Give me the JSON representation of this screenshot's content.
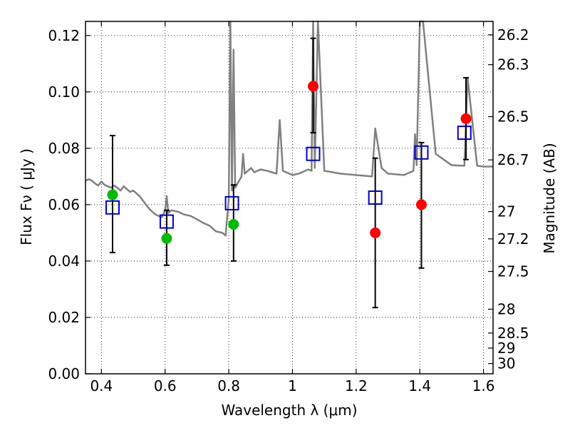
{
  "chart_data": {
    "type": "scatter",
    "xlabel": "Wavelength  λ (μm)",
    "ylabel": "Flux  Fν  ( μJy )",
    "y2label": "Magnitude (AB)",
    "xlim": [
      0.35,
      1.63
    ],
    "ylim": [
      0.0,
      0.125
    ],
    "grid": true,
    "x_ticks": [
      0.4,
      0.6,
      0.8,
      1.0,
      1.2,
      1.4,
      1.6
    ],
    "x_tick_labels": [
      "0.4",
      "0.6",
      "0.8",
      "1",
      "1.2",
      "1.4",
      "1.6"
    ],
    "y_ticks": [
      0.0,
      0.02,
      0.04,
      0.06,
      0.08,
      0.1,
      0.12
    ],
    "y_tick_labels": [
      "0.00",
      "0.02",
      "0.04",
      "0.06",
      "0.08",
      "0.10",
      "0.12"
    ],
    "mag_ticks": [
      26.2,
      26.3,
      26.5,
      26.7,
      27,
      27.2,
      27.5,
      28,
      28.5,
      29,
      30
    ],
    "mag_tick_labels": [
      "26.2",
      "26.3",
      "26.5",
      "26.7",
      "27",
      "27.2",
      "27.5",
      "28",
      "28.5",
      "29",
      "30"
    ],
    "colors": {
      "model": "#808080",
      "observed_blue_optical": "#00bb00",
      "observed_nir": "#ff0000",
      "model_points": "#0000cc",
      "errorbars": "#000000",
      "grid": "#000000"
    },
    "model_spectrum": {
      "x": [
        0.35,
        0.36,
        0.37,
        0.38,
        0.39,
        0.4,
        0.41,
        0.42,
        0.43,
        0.44,
        0.45,
        0.46,
        0.47,
        0.48,
        0.49,
        0.5,
        0.51,
        0.52,
        0.53,
        0.54,
        0.55,
        0.56,
        0.57,
        0.58,
        0.59,
        0.6,
        0.605,
        0.61,
        0.62,
        0.64,
        0.66,
        0.68,
        0.7,
        0.72,
        0.74,
        0.76,
        0.78,
        0.79,
        0.8,
        0.805,
        0.81,
        0.815,
        0.82,
        0.83,
        0.84,
        0.845,
        0.85,
        0.86,
        0.87,
        0.88,
        0.9,
        0.92,
        0.95,
        0.96,
        0.97,
        1.0,
        1.02,
        1.05,
        1.06,
        1.065,
        1.07,
        1.08,
        1.1,
        1.15,
        1.2,
        1.25,
        1.26,
        1.28,
        1.3,
        1.35,
        1.38,
        1.385,
        1.39,
        1.4,
        1.41,
        1.45,
        1.5,
        1.54,
        1.55,
        1.58,
        1.6,
        1.63
      ],
      "y": [
        0.0685,
        0.069,
        0.0685,
        0.0675,
        0.0668,
        0.0682,
        0.067,
        0.0665,
        0.066,
        0.0668,
        0.066,
        0.065,
        0.0665,
        0.0655,
        0.0645,
        0.065,
        0.064,
        0.063,
        0.0615,
        0.06,
        0.0585,
        0.0575,
        0.0565,
        0.056,
        0.0555,
        0.058,
        0.063,
        0.057,
        0.058,
        0.0575,
        0.0565,
        0.056,
        0.0548,
        0.0535,
        0.0525,
        0.0505,
        0.05,
        0.049,
        0.062,
        0.125,
        0.065,
        0.115,
        0.066,
        0.068,
        0.07,
        0.078,
        0.071,
        0.072,
        0.073,
        0.0715,
        0.0725,
        0.072,
        0.071,
        0.09,
        0.072,
        0.0705,
        0.071,
        0.0725,
        0.072,
        0.125,
        0.073,
        0.125,
        0.072,
        0.071,
        0.0705,
        0.07,
        0.087,
        0.073,
        0.071,
        0.0705,
        0.072,
        0.085,
        0.074,
        0.125,
        0.125,
        0.078,
        0.074,
        0.0738,
        0.105,
        0.0738,
        0.0735,
        0.0735
      ]
    },
    "series": [
      {
        "name": "observed (green)",
        "marker": "circle",
        "x": [
          0.435,
          0.605,
          0.815
        ],
        "y": [
          0.0635,
          0.048,
          0.053
        ]
      },
      {
        "name": "observed (red)",
        "marker": "circle",
        "x": [
          1.065,
          1.26,
          1.405,
          1.545
        ],
        "y": [
          0.102,
          0.05,
          0.06,
          0.0905
        ]
      },
      {
        "name": "model photometry",
        "marker": "open-square",
        "x": [
          0.435,
          0.605,
          0.81,
          1.065,
          1.26,
          1.405,
          1.54
        ],
        "y": [
          0.059,
          0.054,
          0.0605,
          0.078,
          0.0625,
          0.0785,
          0.0855
        ]
      },
      {
        "name": "error bars",
        "x": [
          0.435,
          0.605,
          0.815,
          1.065,
          1.26,
          1.405,
          1.545
        ],
        "y_low": [
          0.043,
          0.0385,
          0.04,
          0.0855,
          0.0235,
          0.0375,
          0.076
        ],
        "y_high": [
          0.0845,
          0.058,
          0.067,
          0.119,
          0.0765,
          0.082,
          0.105
        ]
      }
    ]
  }
}
